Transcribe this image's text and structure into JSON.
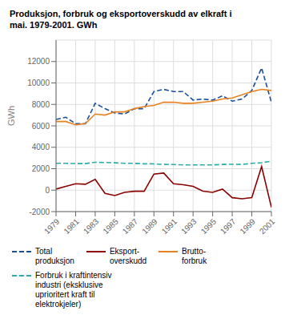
{
  "chart_data": {
    "type": "line",
    "title": "Produksjon, forbruk og eksportoverskudd av elkraft i\nmai. 1979-2001. GWh",
    "y_label": "GWh",
    "x": [
      1979,
      1980,
      1981,
      1982,
      1983,
      1984,
      1985,
      1986,
      1987,
      1988,
      1989,
      1990,
      1991,
      1992,
      1993,
      1994,
      1995,
      1996,
      1997,
      1998,
      1999,
      2000,
      2001
    ],
    "series": [
      {
        "name": "Total\nproduksjon",
        "color": "#1a4f9c",
        "line_style": "dashed",
        "values": [
          6600,
          6800,
          6200,
          6200,
          8100,
          7600,
          7200,
          7100,
          7600,
          7600,
          9200,
          9400,
          9200,
          9200,
          8400,
          8500,
          8400,
          8800,
          8300,
          8500,
          9300,
          11400,
          8200
        ]
      },
      {
        "name": "Eksport-\noverskudd",
        "color": "#8b0000",
        "line_style": "solid",
        "values": [
          100,
          350,
          600,
          550,
          1000,
          -300,
          -500,
          -200,
          -100,
          -100,
          1500,
          1600,
          600,
          500,
          350,
          -100,
          -200,
          100,
          -700,
          -800,
          -700,
          2200,
          -1600
        ]
      },
      {
        "name": "Brutto-\nforbruk",
        "color": "#e8821e",
        "line_style": "solid",
        "values": [
          6400,
          6400,
          6100,
          6200,
          7100,
          7000,
          7300,
          7300,
          7600,
          7800,
          7900,
          8200,
          8200,
          8100,
          8100,
          8200,
          8300,
          8500,
          8600,
          8900,
          9200,
          9400,
          9300
        ]
      },
      {
        "name": "Forbruk i kraftintensiv\nindustri (eksklusive\nuprioritert kraft til\nelektrokjeler)",
        "color": "#2aada8",
        "line_style": "dashed",
        "values": [
          2500,
          2500,
          2480,
          2480,
          2600,
          2580,
          2550,
          2500,
          2500,
          2460,
          2450,
          2400,
          2390,
          2350,
          2360,
          2360,
          2360,
          2400,
          2410,
          2400,
          2500,
          2560,
          2700
        ]
      }
    ],
    "xlim": [
      1979,
      2001
    ],
    "xticks": [
      1979,
      1981,
      1983,
      1985,
      1987,
      1989,
      1991,
      1993,
      1995,
      1997,
      1999,
      2001
    ],
    "ylim": [
      -2000,
      14000
    ],
    "yticks": [
      -2000,
      0,
      2000,
      4000,
      6000,
      8000,
      10000,
      12000
    ],
    "grid": true,
    "legend": "bottom"
  }
}
